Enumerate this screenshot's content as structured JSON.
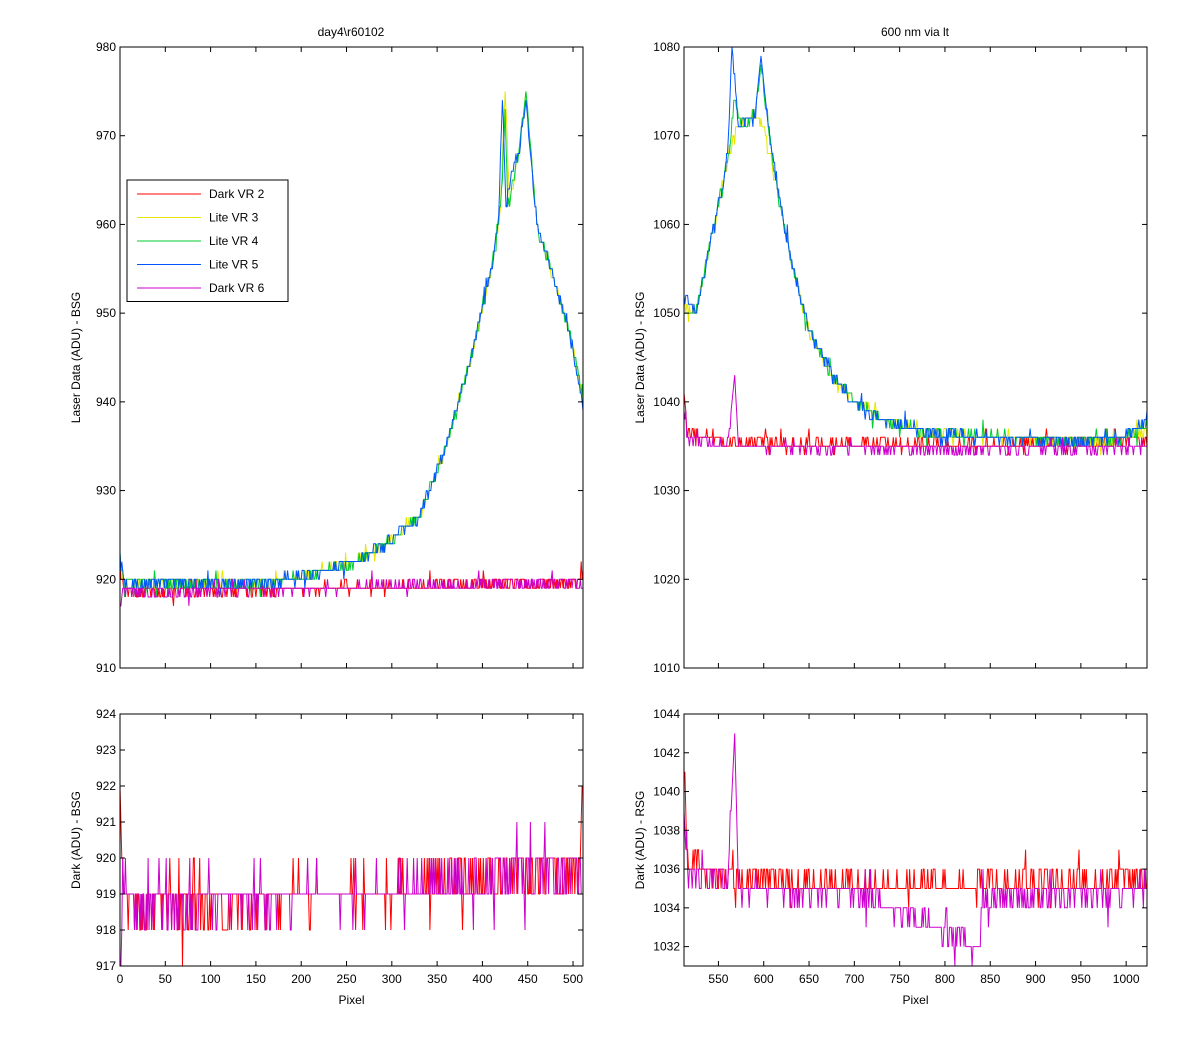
{
  "figure": {
    "title_left": "day4\\r60102",
    "title_right": "600 nm via lt"
  },
  "chart_data": [
    {
      "id": "top_left",
      "type": "line",
      "title": "day4\\r60102",
      "xlabel": "",
      "ylabel": "Laser Data (ADU) - BSG",
      "xlim": [
        0,
        511
      ],
      "ylim": [
        910,
        980
      ],
      "xticks": [],
      "yticks": [
        910,
        920,
        930,
        940,
        950,
        960,
        970,
        980
      ],
      "legend": {
        "placement": "upper-left",
        "entries": [
          "Dark VR 2",
          "Lite VR 3",
          "Lite VR 4",
          "Lite VR 5",
          "Dark VR 6"
        ]
      },
      "series": [
        {
          "name": "Dark VR 2",
          "color": "#ff0000",
          "noise": "int",
          "points": [
            [
              0,
              922
            ],
            [
              4,
              919
            ],
            [
              15,
              918.6
            ],
            [
              150,
              918.8
            ],
            [
              330,
              919.2
            ],
            [
              420,
              919.5
            ],
            [
              505,
              919.6
            ],
            [
              511,
              921
            ]
          ]
        },
        {
          "name": "Lite VR 3",
          "color": "#e6e600",
          "noise": "int",
          "points": [
            [
              0,
              922
            ],
            [
              5,
              919.5
            ],
            [
              150,
              919.5
            ],
            [
              200,
              920.3
            ],
            [
              260,
              922
            ],
            [
              300,
              924.5
            ],
            [
              330,
              927
            ],
            [
              360,
              935
            ],
            [
              390,
              946
            ],
            [
              410,
              955
            ],
            [
              420,
              962
            ],
            [
              425,
              975
            ],
            [
              430,
              962
            ],
            [
              440,
              968
            ],
            [
              448,
              975
            ],
            [
              460,
              960
            ],
            [
              475,
              955
            ],
            [
              490,
              950
            ],
            [
              500,
              946
            ],
            [
              511,
              940
            ]
          ]
        },
        {
          "name": "Lite VR 4",
          "color": "#00cc33",
          "noise": "int",
          "points": [
            [
              0,
              922
            ],
            [
              5,
              919.5
            ],
            [
              150,
              919.5
            ],
            [
              200,
              920.3
            ],
            [
              260,
              922
            ],
            [
              300,
              924.5
            ],
            [
              330,
              927
            ],
            [
              360,
              935
            ],
            [
              390,
              946
            ],
            [
              410,
              955
            ],
            [
              420,
              962
            ],
            [
              425,
              973
            ],
            [
              428,
              962
            ],
            [
              440,
              968
            ],
            [
              448,
              975
            ],
            [
              460,
              960
            ],
            [
              475,
              955
            ],
            [
              490,
              950
            ],
            [
              500,
              946
            ],
            [
              511,
              940
            ]
          ]
        },
        {
          "name": "Lite VR 5",
          "color": "#0055ff",
          "noise": "int",
          "points": [
            [
              0,
              923
            ],
            [
              5,
              919.5
            ],
            [
              150,
              919.5
            ],
            [
              200,
              920.3
            ],
            [
              260,
              922
            ],
            [
              300,
              924.5
            ],
            [
              330,
              927
            ],
            [
              360,
              935
            ],
            [
              390,
              946
            ],
            [
              410,
              955
            ],
            [
              418,
              961
            ],
            [
              422,
              974
            ],
            [
              426,
              962
            ],
            [
              432,
              966
            ],
            [
              440,
              968
            ],
            [
              448,
              974
            ],
            [
              460,
              960
            ],
            [
              475,
              955
            ],
            [
              490,
              950
            ],
            [
              500,
              946
            ],
            [
              511,
              939
            ]
          ]
        },
        {
          "name": "Dark VR 6",
          "color": "#cc00cc",
          "noise": "int",
          "points": [
            [
              0,
              917
            ],
            [
              4,
              919
            ],
            [
              15,
              918.6
            ],
            [
              150,
              918.8
            ],
            [
              330,
              919.2
            ],
            [
              420,
              919.5
            ],
            [
              505,
              919.6
            ],
            [
              511,
              919
            ]
          ]
        }
      ]
    },
    {
      "id": "top_right",
      "type": "line",
      "title": "600 nm via lt",
      "xlabel": "",
      "ylabel": "Laser Data (ADU) - RSG",
      "xlim": [
        512,
        1023
      ],
      "ylim": [
        1010,
        1080
      ],
      "xticks": [],
      "yticks": [
        1010,
        1020,
        1030,
        1040,
        1050,
        1060,
        1070,
        1080
      ],
      "series": [
        {
          "name": "Dark VR 2",
          "color": "#ff0000",
          "noise": "int",
          "points": [
            [
              512,
              1041
            ],
            [
              516,
              1036.5
            ],
            [
              560,
              1035.5
            ],
            [
              700,
              1035.2
            ],
            [
              850,
              1035.2
            ],
            [
              1023,
              1035.5
            ]
          ]
        },
        {
          "name": "Lite VR 3",
          "color": "#e6e600",
          "noise": "int",
          "points": [
            [
              512,
              1051
            ],
            [
              525,
              1050
            ],
            [
              545,
              1060
            ],
            [
              560,
              1067
            ],
            [
              570,
              1071
            ],
            [
              580,
              1072
            ],
            [
              595,
              1072
            ],
            [
              600,
              1071
            ],
            [
              615,
              1064
            ],
            [
              630,
              1056
            ],
            [
              650,
              1048
            ],
            [
              675,
              1043
            ],
            [
              700,
              1040
            ],
            [
              730,
              1038
            ],
            [
              780,
              1036.5
            ],
            [
              850,
              1036
            ],
            [
              950,
              1035.5
            ],
            [
              1000,
              1036
            ],
            [
              1023,
              1037
            ]
          ]
        },
        {
          "name": "Lite VR 4",
          "color": "#00cc33",
          "noise": "int",
          "points": [
            [
              512,
              1050
            ],
            [
              525,
              1050
            ],
            [
              545,
              1060
            ],
            [
              560,
              1067
            ],
            [
              568,
              1074
            ],
            [
              575,
              1071
            ],
            [
              590,
              1072
            ],
            [
              597,
              1078
            ],
            [
              605,
              1071
            ],
            [
              615,
              1064
            ],
            [
              630,
              1056
            ],
            [
              650,
              1048
            ],
            [
              675,
              1043
            ],
            [
              700,
              1040
            ],
            [
              730,
              1038
            ],
            [
              780,
              1036.5
            ],
            [
              850,
              1036
            ],
            [
              950,
              1035.5
            ],
            [
              1000,
              1036
            ],
            [
              1023,
              1037.5
            ]
          ]
        },
        {
          "name": "Lite VR 5",
          "color": "#0055ff",
          "noise": "int",
          "points": [
            [
              512,
              1052
            ],
            [
              525,
              1050
            ],
            [
              545,
              1060
            ],
            [
              560,
              1067
            ],
            [
              565,
              1080
            ],
            [
              572,
              1071
            ],
            [
              590,
              1072
            ],
            [
              597,
              1079
            ],
            [
              605,
              1071
            ],
            [
              615,
              1064
            ],
            [
              630,
              1056
            ],
            [
              650,
              1048
            ],
            [
              675,
              1043
            ],
            [
              700,
              1040
            ],
            [
              730,
              1038
            ],
            [
              780,
              1036.5
            ],
            [
              850,
              1036
            ],
            [
              950,
              1035.5
            ],
            [
              1000,
              1036
            ],
            [
              1023,
              1038
            ]
          ]
        },
        {
          "name": "Dark VR 6",
          "color": "#cc00cc",
          "noise": "int",
          "points": [
            [
              512,
              1039
            ],
            [
              516,
              1036
            ],
            [
              560,
              1035.2
            ],
            [
              568,
              1043
            ],
            [
              572,
              1035
            ],
            [
              700,
              1034.8
            ],
            [
              850,
              1034.6
            ],
            [
              1023,
              1034.8
            ]
          ]
        }
      ]
    },
    {
      "id": "bottom_left",
      "type": "line",
      "title": "",
      "xlabel": "Pixel",
      "ylabel": "Dark (ADU) - BSG",
      "xlim": [
        0,
        511
      ],
      "ylim": [
        917,
        924
      ],
      "xticks": [
        0,
        50,
        100,
        150,
        200,
        250,
        300,
        350,
        400,
        450,
        500
      ],
      "yticks": [
        917,
        918,
        919,
        920,
        921,
        922,
        923,
        924
      ],
      "series": [
        {
          "name": "Dark VR 2",
          "color": "#ff0000",
          "noise": "int",
          "points": [
            [
              0,
              922
            ],
            [
              4,
              919
            ],
            [
              15,
              918.6
            ],
            [
              150,
              918.8
            ],
            [
              330,
              919.2
            ],
            [
              420,
              919.5
            ],
            [
              505,
              919.6
            ],
            [
              511,
              921.5
            ]
          ]
        },
        {
          "name": "Dark VR 6",
          "color": "#cc00cc",
          "noise": "int",
          "points": [
            [
              0,
              917
            ],
            [
              4,
              919
            ],
            [
              15,
              918.6
            ],
            [
              150,
              918.8
            ],
            [
              330,
              919.2
            ],
            [
              420,
              919.5
            ],
            [
              505,
              919.6
            ],
            [
              511,
              919
            ]
          ]
        }
      ]
    },
    {
      "id": "bottom_right",
      "type": "line",
      "title": "",
      "xlabel": "Pixel",
      "ylabel": "Dark (ADU) - RSG",
      "xlim": [
        512,
        1023
      ],
      "ylim": [
        1031,
        1044
      ],
      "xticks": [
        550,
        600,
        650,
        700,
        750,
        800,
        850,
        900,
        950,
        1000
      ],
      "yticks": [
        1032,
        1034,
        1036,
        1038,
        1040,
        1042,
        1044
      ],
      "series": [
        {
          "name": "Dark VR 2",
          "color": "#ff0000",
          "noise": "int",
          "points": [
            [
              512,
              1041.5
            ],
            [
              516,
              1036.5
            ],
            [
              560,
              1035.5
            ],
            [
              700,
              1035.2
            ],
            [
              850,
              1035.2
            ],
            [
              1023,
              1035.5
            ]
          ]
        },
        {
          "name": "Dark VR 6",
          "color": "#cc00cc",
          "noise": "int",
          "points": [
            [
              512,
              1039
            ],
            [
              516,
              1036
            ],
            [
              560,
              1035.2
            ],
            [
              568,
              1043
            ],
            [
              572,
              1035
            ],
            [
              700,
              1034.8
            ],
            [
              838,
              1032
            ],
            [
              842,
              1034.6
            ],
            [
              1023,
              1034.8
            ]
          ]
        }
      ]
    }
  ]
}
